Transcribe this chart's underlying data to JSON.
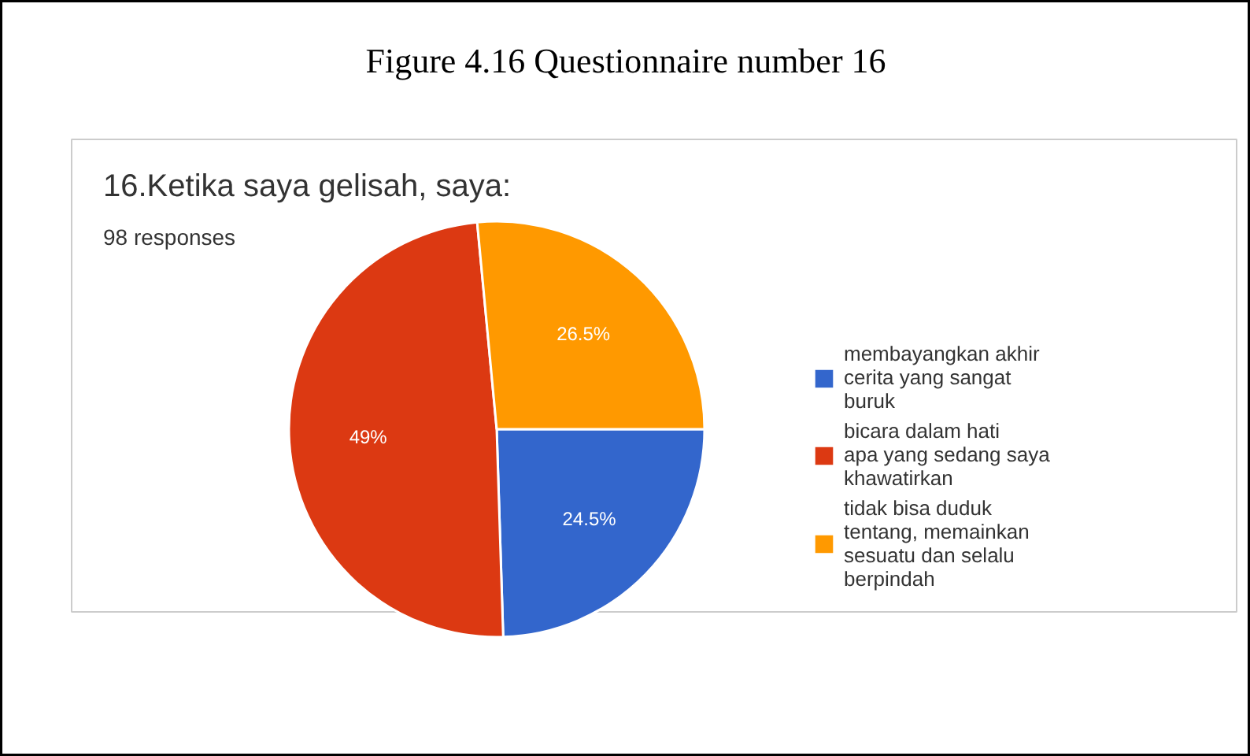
{
  "chart_data": {
    "type": "pie",
    "title": "16.Ketika saya gelisah, saya:",
    "subtitle": "98 responses",
    "annotations": [
      "Figure 4.16 Questionnaire number 16"
    ],
    "categories": [
      "membayangkan akhir cerita yang sangat buruk",
      "bicara dalam hati apa yang sedang saya khawatirkan",
      "tidak bisa duduk tentang, memainkan sesuatu dan selalu berpindah"
    ],
    "values": [
      24.5,
      49,
      26.5
    ],
    "value_labels": [
      "24.5%",
      "49%",
      "26.5%"
    ],
    "colors": [
      "#3366cc",
      "#dc3912",
      "#ff9900"
    ],
    "legend": "right"
  }
}
